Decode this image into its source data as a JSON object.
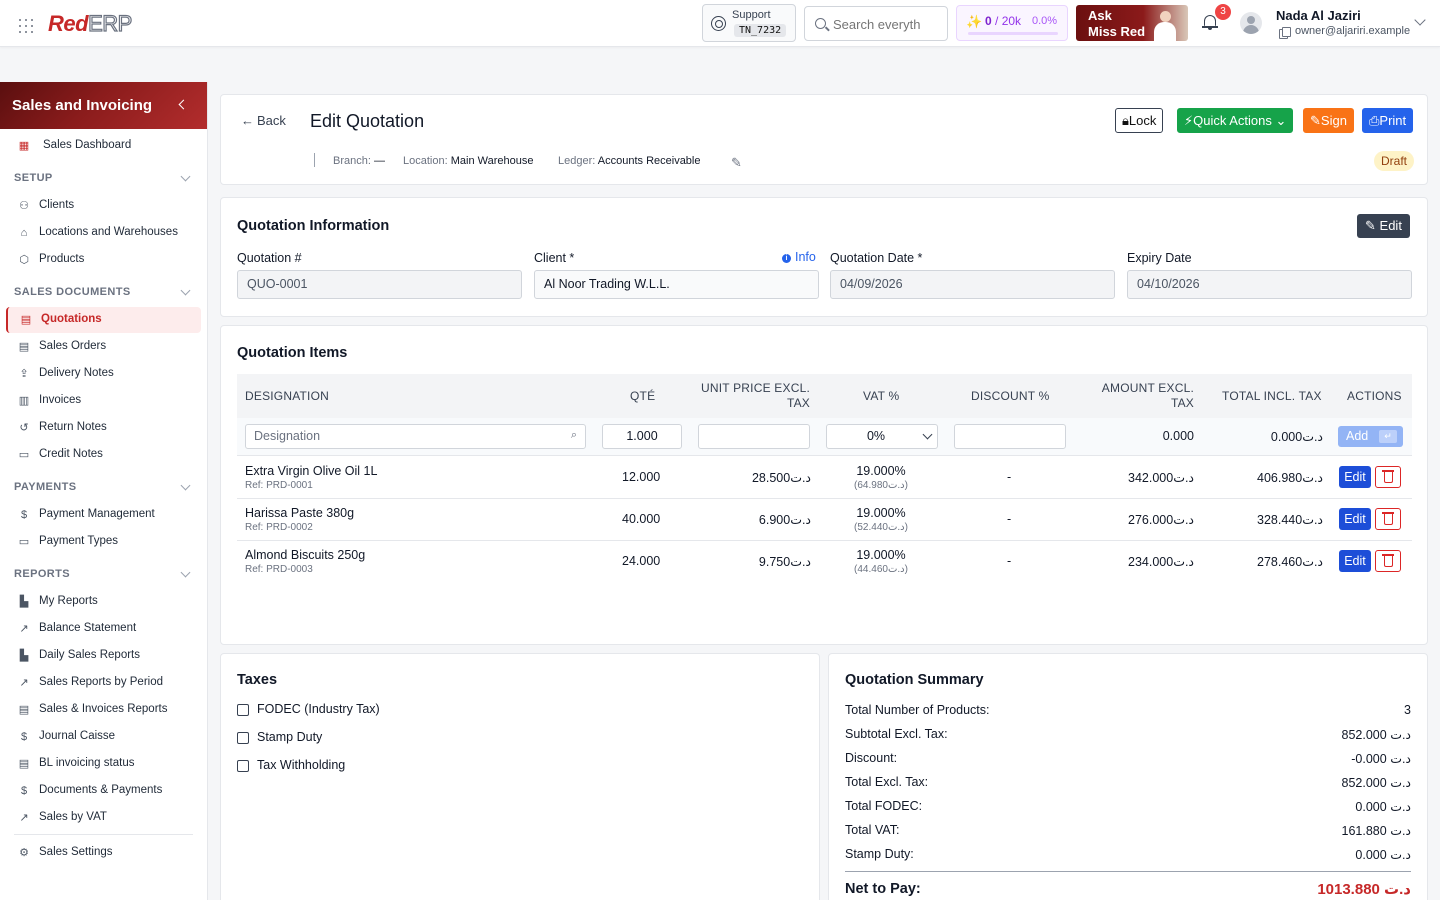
{
  "topbar": {
    "logo_red": "Red",
    "logo_erp": "ERP",
    "support_label": "Support",
    "support_code": "TN_7232",
    "search_placeholder": "Search everyth",
    "ai_usage": "0",
    "ai_limit": "/ 20k",
    "ai_percent": "0.0%",
    "ai_progress_fraction": 0,
    "ask_line1": "Ask",
    "ask_line2": "Miss Red",
    "notifications_count": "3",
    "user_name": "Nada Al Jaziri",
    "user_email": "owner@aljariri.example"
  },
  "sidebar": {
    "title": "Sales and Invoicing",
    "dashboard": "Sales Dashboard",
    "sections": {
      "setup": "SETUP",
      "sales_documents": "SALES DOCUMENTS",
      "payments": "PAYMENTS",
      "reports": "REPORTS"
    },
    "setup_items": [
      "Clients",
      "Locations and Warehouses",
      "Products"
    ],
    "sales_items": [
      "Quotations",
      "Sales Orders",
      "Delivery Notes",
      "Invoices",
      "Return Notes",
      "Credit Notes"
    ],
    "payment_items": [
      "Payment Management",
      "Payment Types"
    ],
    "report_items": [
      "My Reports",
      "Balance Statement",
      "Daily Sales Reports",
      "Sales Reports by Period",
      "Sales & Invoices Reports",
      "Journal Caisse",
      "BL invoicing status",
      "Documents & Payments",
      "Sales by VAT"
    ],
    "settings": "Sales Settings"
  },
  "header": {
    "back": "Back",
    "title": "Edit Quotation",
    "lock": "Lock",
    "quick_actions": "Quick Actions",
    "sign": "Sign",
    "print": "Print",
    "branch_label": "Branch:",
    "branch_value": "—",
    "location_label": "Location:",
    "location_value": "Main Warehouse",
    "ledger_label": "Ledger:",
    "ledger_value": "Accounts Receivable",
    "status": "Draft"
  },
  "quotation_info": {
    "title": "Quotation Information",
    "edit": "Edit",
    "number_label": "Quotation #",
    "number_value": "QUO-0001",
    "client_label": "Client *",
    "client_info": "Info",
    "client_value": "Al Noor Trading W.L.L.",
    "date_label": "Quotation Date *",
    "date_value": "04/09/2026",
    "expiry_label": "Expiry Date",
    "expiry_value": "04/10/2026"
  },
  "items": {
    "title": "Quotation Items",
    "columns": {
      "designation": "DESIGNATION",
      "qty": "QTÉ",
      "unit_price_1": "UNIT PRICE EXCL.",
      "unit_price_2": "TAX",
      "vat": "VAT %",
      "discount": "DISCOUNT %",
      "amount_1": "AMOUNT EXCL.",
      "amount_2": "TAX",
      "total": "TOTAL INCL. TAX",
      "actions": "ACTIONS"
    },
    "new_row": {
      "designation_placeholder": "Designation",
      "qty": "1.000",
      "vat": "0%",
      "amount": "0.000",
      "total": "0.000د.ت",
      "add": "Add",
      "add_key": "↵"
    },
    "rows": [
      {
        "name": "Extra Virgin Olive Oil 1L",
        "ref": "Ref: PRD-0001",
        "qty": "12.000",
        "unit_price": "28.500د.ت",
        "vat": "19.000%",
        "vat_amount": "(64.980د.ت)",
        "discount": "-",
        "amount": "342.000د.ت",
        "total": "406.980د.ت",
        "edit": "Edit"
      },
      {
        "name": "Harissa Paste 380g",
        "ref": "Ref: PRD-0002",
        "qty": "40.000",
        "unit_price": "6.900د.ت",
        "vat": "19.000%",
        "vat_amount": "(52.440د.ت)",
        "discount": "-",
        "amount": "276.000د.ت",
        "total": "328.440د.ت",
        "edit": "Edit"
      },
      {
        "name": "Almond Biscuits 250g",
        "ref": "Ref: PRD-0003",
        "qty": "24.000",
        "unit_price": "9.750د.ت",
        "vat": "19.000%",
        "vat_amount": "(44.460د.ت)",
        "discount": "-",
        "amount": "234.000د.ت",
        "total": "278.460د.ت",
        "edit": "Edit"
      }
    ]
  },
  "taxes": {
    "title": "Taxes",
    "options": [
      "FODEC (Industry Tax)",
      "Stamp Duty",
      "Tax Withholding"
    ]
  },
  "summary": {
    "title": "Quotation Summary",
    "lines": [
      {
        "label": "Total Number of Products:",
        "value": "3"
      },
      {
        "label": "Subtotal Excl. Tax:",
        "value": "852.000 د.ت"
      },
      {
        "label": "Discount:",
        "value": "-0.000 د.ت"
      },
      {
        "label": "Total Excl. Tax:",
        "value": "852.000 د.ت"
      },
      {
        "label": "Total FODEC:",
        "value": "0.000 د.ت"
      },
      {
        "label": "Total VAT:",
        "value": "161.880 د.ت"
      },
      {
        "label": "Stamp Duty:",
        "value": "0.000 د.ت"
      }
    ],
    "net_label": "Net to Pay:",
    "net_value": "1013.880 د.ت"
  },
  "colors": {
    "brand": "#c62828",
    "primary": "#2563eb",
    "success": "#16a34a",
    "warning": "#f97316"
  }
}
